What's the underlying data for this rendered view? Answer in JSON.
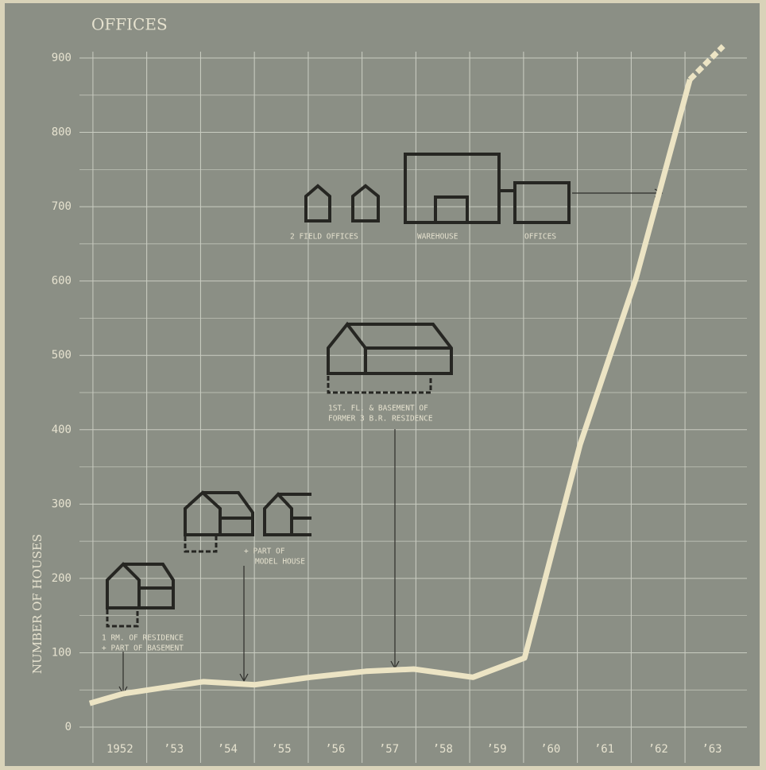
{
  "chart_data": {
    "type": "line",
    "title": "OFFICES",
    "y_label": "NUMBER OF HOUSES",
    "series": [
      {
        "color": "#ece4c4",
        "style": "solid",
        "x": [
          1951.44,
          1952.07,
          1953.55,
          1954.51,
          1955.54,
          1956.57,
          1957.46,
          1958.56,
          1959.52,
          1960.55,
          1961.59,
          1962.59
        ],
        "values": [
          32,
          45,
          61,
          57,
          67,
          75,
          78,
          67,
          93,
          380,
          604,
          871
        ]
      },
      {
        "color": "#ece4c4",
        "style": "dashed",
        "x": [
          1962.59,
          1963.21
        ],
        "values": [
          871,
          916
        ]
      }
    ],
    "xlim": [
      1951.25,
      1963.65
    ],
    "ylim": [
      0,
      900
    ],
    "xticks": [
      {
        "value": 1952,
        "label": "1952"
      },
      {
        "value": 1953,
        "label": "’53"
      },
      {
        "value": 1954,
        "label": "’54"
      },
      {
        "value": 1955,
        "label": "’55"
      },
      {
        "value": 1956,
        "label": "’56"
      },
      {
        "value": 1957,
        "label": "’57"
      },
      {
        "value": 1958,
        "label": "’58"
      },
      {
        "value": 1959,
        "label": "’59"
      },
      {
        "value": 1960,
        "label": "’60"
      },
      {
        "value": 1961,
        "label": "’61"
      },
      {
        "value": 1962,
        "label": "’62"
      },
      {
        "value": 1963,
        "label": "’63"
      }
    ],
    "yticks": [
      0,
      100,
      200,
      300,
      400,
      500,
      600,
      700,
      800,
      900
    ],
    "grid": true,
    "annotations": [
      "2 FIELD OFFICES",
      "WAREHOUSE",
      "OFFICES",
      "1ST. FL. & BASEMENT OF",
      "FORMER 3 B.R. RESIDENCE",
      "+ PART OF",
      "MODEL HOUSE",
      "1 RM. OF RESIDENCE",
      "+ PART OF BASEMENT"
    ]
  }
}
